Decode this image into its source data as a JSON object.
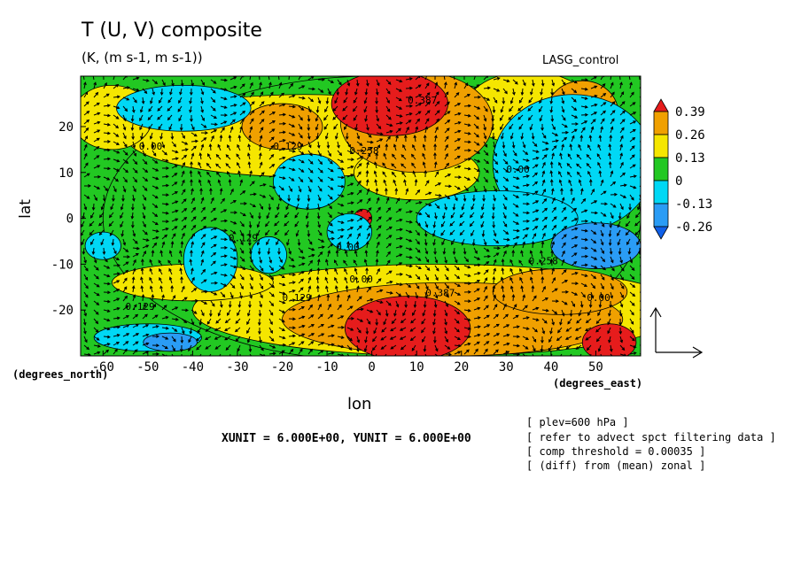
{
  "chart_data": {
    "type": "heatmap",
    "title": "T (U, V) composite",
    "subtitle": "(K, (m s-1, m s-1))",
    "model": "LASG_control",
    "xlabel": "lon",
    "ylabel": "lat",
    "x_unit_note": "(degrees_north)",
    "y_unit_note": "(degrees_east)",
    "xlim": [
      -65,
      60
    ],
    "ylim": [
      -30,
      31
    ],
    "xticks": [
      "-60",
      "-50",
      "-40",
      "-30",
      "-20",
      "-10",
      "0",
      "10",
      "20",
      "30",
      "40",
      "50"
    ],
    "yticks": [
      "20",
      "10",
      "0",
      "-10",
      "-20"
    ],
    "colorbar": {
      "labels": [
        "0.39",
        "0.26",
        "0.13",
        "0",
        "-0.13",
        "-0.26"
      ],
      "colors": [
        "#e61c1c",
        "#f0a000",
        "#f5e600",
        "#22c822",
        "#00d8f5",
        "#2a9cf5",
        "#1060e8"
      ]
    },
    "contour_labels": [
      "0.00",
      "0.129",
      "0.258",
      "0.387",
      "0.00",
      "0.129",
      "0.00",
      "0.00",
      "0.129",
      "0.258",
      "0.387",
      "0.00",
      "0.129"
    ],
    "scale_text": "XUNIT = 6.000E+00, YUNIT = 6.000E+00",
    "notes": [
      "[ plev=600 hPa ]",
      "[ refer to advect spct filtering data ]",
      "[ comp threshold = 0.00035 ]",
      "[ (diff) from (mean) zonal ]"
    ],
    "regions": [
      {
        "level": 2,
        "x": 0,
        "y": 0,
        "rx": 60,
        "ry": 31
      },
      {
        "level": 3,
        "x": -15,
        "y": 18,
        "rx": 40,
        "ry": 9
      },
      {
        "level": 3,
        "x": -58,
        "y": 22,
        "rx": 9,
        "ry": 7
      },
      {
        "level": 3,
        "x": 35,
        "y": 24,
        "rx": 14,
        "ry": 8
      },
      {
        "level": 3,
        "x": 15,
        "y": -20,
        "rx": 55,
        "ry": 10
      },
      {
        "level": 3,
        "x": -40,
        "y": -14,
        "rx": 18,
        "ry": 4
      },
      {
        "level": 3,
        "x": 10,
        "y": 10,
        "rx": 14,
        "ry": 6
      },
      {
        "level": 4,
        "x": 10,
        "y": 21,
        "rx": 17,
        "ry": 11
      },
      {
        "level": 4,
        "x": 47,
        "y": 23,
        "rx": 8,
        "ry": 7
      },
      {
        "level": 4,
        "x": -20,
        "y": 20,
        "rx": 9,
        "ry": 5
      },
      {
        "level": 4,
        "x": 18,
        "y": -22,
        "rx": 38,
        "ry": 8
      },
      {
        "level": 4,
        "x": 42,
        "y": -16,
        "rx": 15,
        "ry": 5
      },
      {
        "level": 5,
        "x": 4,
        "y": 25,
        "rx": 13,
        "ry": 7
      },
      {
        "level": 5,
        "x": 8,
        "y": -24,
        "rx": 14,
        "ry": 7
      },
      {
        "level": 5,
        "x": 53,
        "y": -27,
        "rx": 6,
        "ry": 4
      },
      {
        "level": 5,
        "x": -2,
        "y": 0,
        "rx": 2,
        "ry": 2
      },
      {
        "level": 1,
        "x": 45,
        "y": 12,
        "rx": 18,
        "ry": 15
      },
      {
        "level": 1,
        "x": -42,
        "y": 24,
        "rx": 15,
        "ry": 5
      },
      {
        "level": 1,
        "x": -36,
        "y": -9,
        "rx": 6,
        "ry": 7
      },
      {
        "level": 1,
        "x": -23,
        "y": -8,
        "rx": 4,
        "ry": 4
      },
      {
        "level": 1,
        "x": -14,
        "y": 8,
        "rx": 8,
        "ry": 6
      },
      {
        "level": 1,
        "x": -5,
        "y": -3,
        "rx": 5,
        "ry": 4
      },
      {
        "level": 1,
        "x": 28,
        "y": 0,
        "rx": 18,
        "ry": 6
      },
      {
        "level": 1,
        "x": -50,
        "y": -26,
        "rx": 12,
        "ry": 3
      },
      {
        "level": 1,
        "x": -60,
        "y": -6,
        "rx": 4,
        "ry": 3
      },
      {
        "level": 0,
        "x": 50,
        "y": -6,
        "rx": 10,
        "ry": 5
      },
      {
        "level": 0,
        "x": -45,
        "y": -27,
        "rx": 6,
        "ry": 2
      }
    ]
  }
}
